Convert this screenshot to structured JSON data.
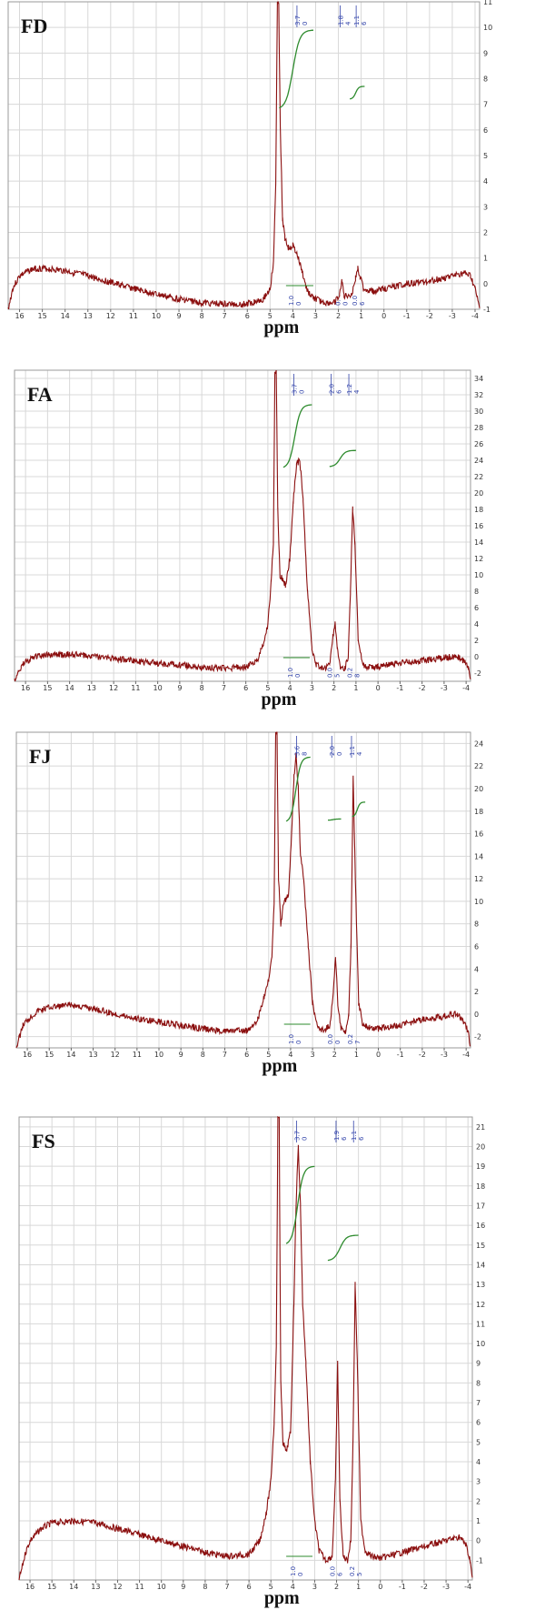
{
  "colors": {
    "spectrum": "#8b0f0f",
    "integral": "#2e8b2e",
    "peak_label": "#3344aa",
    "grid": "#d8d8d8"
  },
  "chart_data": [
    {
      "type": "line",
      "title": "FD",
      "xlabel": "ppm",
      "xlim": [
        16.5,
        -4.2
      ],
      "x_reversed": true,
      "ylim": [
        -1,
        11
      ],
      "x_ticks": [
        16,
        15,
        14,
        13,
        12,
        11,
        10,
        9,
        8,
        7,
        6,
        5,
        4,
        3,
        2,
        1,
        0,
        -1,
        -2,
        -3,
        -4
      ],
      "y_ticks": [
        -1,
        0,
        1,
        2,
        3,
        4,
        5,
        6,
        7,
        8,
        9,
        10,
        11
      ],
      "series": [
        {
          "x": [
            16.5,
            16.3,
            16,
            15.5,
            15,
            14,
            13,
            12,
            11,
            10,
            9,
            8,
            7,
            6,
            5.7,
            5.3,
            5.0,
            4.85,
            4.75,
            4.68,
            4.62,
            4.55,
            4.45,
            4.35,
            4.2,
            4.0,
            3.8,
            3.6,
            3.4,
            3.2,
            3.0,
            2.6,
            2.2,
            1.95,
            1.85,
            1.75,
            1.4,
            1.25,
            1.15,
            1.05,
            0.9,
            0.5,
            0,
            -1,
            -2,
            -3,
            -3.5,
            -3.8,
            -4,
            -4.2
          ],
          "y": [
            -1,
            -0.2,
            0.3,
            0.55,
            0.6,
            0.5,
            0.3,
            0.05,
            -0.2,
            -0.42,
            -0.6,
            -0.75,
            -0.8,
            -0.8,
            -0.7,
            -0.6,
            -0.2,
            0.8,
            4,
            11,
            11,
            6,
            2.5,
            1.8,
            1.4,
            1.5,
            1.1,
            0.5,
            -0.2,
            -0.5,
            -0.6,
            -0.75,
            -0.75,
            -0.5,
            0.2,
            -0.5,
            -0.4,
            0.2,
            0.6,
            0.3,
            -0.2,
            -0.3,
            -0.2,
            0,
            0.1,
            0.3,
            0.4,
            0.3,
            -0.2,
            -1
          ]
        }
      ],
      "peak_labels": [
        {
          "x": 3.7,
          "text": [
            "3.7",
            "0"
          ]
        },
        {
          "x": 1.8,
          "text": [
            "1.8",
            "4"
          ]
        },
        {
          "x": 1.1,
          "text": [
            "1.1",
            "6"
          ]
        }
      ],
      "integrals": [
        {
          "x0": 4.6,
          "x1": 3.1,
          "y0": 6.8,
          "y1": 9.9
        },
        {
          "x0": 1.5,
          "x1": 0.85,
          "y0": 7.2,
          "y1": 7.7
        }
      ],
      "integral_values": [
        {
          "x": 3.9,
          "text": [
            "1.0",
            "0"
          ]
        },
        {
          "x": 1.85,
          "text": [
            "0.",
            "0"
          ]
        },
        {
          "x": 1.1,
          "text": [
            "0.0",
            "6"
          ]
        }
      ]
    },
    {
      "type": "line",
      "title": "FA",
      "xlabel": "ppm",
      "xlim": [
        16.5,
        -4.2
      ],
      "x_reversed": true,
      "ylim": [
        -3,
        35
      ],
      "x_ticks": [
        16,
        15,
        14,
        13,
        12,
        11,
        10,
        9,
        8,
        7,
        6,
        5,
        4,
        3,
        2,
        1,
        0,
        -1,
        -2,
        -3,
        -4
      ],
      "y_ticks": [
        -2,
        0,
        2,
        4,
        6,
        8,
        10,
        12,
        14,
        16,
        18,
        20,
        22,
        24,
        26,
        28,
        30,
        32,
        34
      ],
      "series": [
        {
          "x": [
            16.5,
            16.2,
            16,
            15.5,
            15,
            14,
            13,
            12,
            11,
            10,
            9,
            8,
            7,
            6,
            5.5,
            5.2,
            5.0,
            4.85,
            4.75,
            4.68,
            4.62,
            4.55,
            4.45,
            4.2,
            4.0,
            3.85,
            3.7,
            3.55,
            3.4,
            3.2,
            3.0,
            2.8,
            2.5,
            2.2,
            2.05,
            1.95,
            1.85,
            1.7,
            1.5,
            1.35,
            1.25,
            1.15,
            1.05,
            0.9,
            0.7,
            0.4,
            0,
            -1,
            -2,
            -3,
            -3.6,
            -3.9,
            -4.1,
            -4.2
          ],
          "y": [
            -3,
            -1.2,
            -0.6,
            0,
            0.2,
            0.3,
            0.1,
            -0.2,
            -0.5,
            -0.8,
            -1,
            -1.3,
            -1.4,
            -1.2,
            -0.5,
            1.5,
            4,
            9,
            14,
            35,
            35,
            18,
            10,
            8.8,
            12,
            19,
            23.5,
            24,
            19,
            8,
            1,
            -1,
            -1.5,
            -1,
            2.5,
            4,
            1,
            -1.2,
            -1.4,
            0,
            8,
            18,
            14,
            2,
            -1,
            -1.3,
            -1.2,
            -0.8,
            -0.5,
            -0.1,
            0,
            -0.5,
            -1.5,
            -3
          ]
        }
      ],
      "peak_labels": [
        {
          "x": 3.7,
          "text": [
            "3.7",
            "0"
          ]
        },
        {
          "x": 2.0,
          "text": [
            "2.0",
            "6"
          ]
        },
        {
          "x": 1.2,
          "text": [
            "1.2",
            "4"
          ]
        }
      ],
      "integrals": [
        {
          "x0": 4.3,
          "x1": 3.0,
          "y0": 23,
          "y1": 30.8
        },
        {
          "x0": 2.2,
          "x1": 1.0,
          "y0": 23.2,
          "y1": 25.2
        }
      ],
      "integral_values": [
        {
          "x": 3.8,
          "text": [
            "1.0",
            "0"
          ]
        },
        {
          "x": 2.0,
          "text": [
            "0.0",
            "5"
          ]
        },
        {
          "x": 1.1,
          "text": [
            "0.2",
            "8"
          ]
        }
      ]
    },
    {
      "type": "line",
      "title": "FJ",
      "xlabel": "ppm",
      "xlim": [
        16.5,
        -4.2
      ],
      "x_reversed": true,
      "ylim": [
        -3,
        25
      ],
      "x_ticks": [
        16,
        15,
        14,
        13,
        12,
        11,
        10,
        9,
        8,
        7,
        6,
        5,
        4,
        3,
        2,
        1,
        0,
        -1,
        -2,
        -3,
        -4
      ],
      "y_ticks": [
        -2,
        0,
        2,
        4,
        6,
        8,
        10,
        12,
        14,
        16,
        18,
        20,
        22,
        24
      ],
      "series": [
        {
          "x": [
            16.5,
            16.2,
            16,
            15.5,
            15,
            14,
            13,
            12,
            11,
            10,
            9,
            8,
            7,
            6,
            5.5,
            5.2,
            5.0,
            4.85,
            4.75,
            4.68,
            4.62,
            4.55,
            4.45,
            4.3,
            4.1,
            3.95,
            3.85,
            3.75,
            3.65,
            3.55,
            3.4,
            3.2,
            3.0,
            2.8,
            2.5,
            2.2,
            2.05,
            1.95,
            1.85,
            1.7,
            1.5,
            1.35,
            1.25,
            1.15,
            1.05,
            0.9,
            0.7,
            0.4,
            0,
            -1,
            -2,
            -3,
            -3.6,
            -3.9,
            -4.1,
            -4.2
          ],
          "y": [
            -3,
            -1,
            -0.5,
            0.3,
            0.6,
            0.8,
            0.5,
            0,
            -0.4,
            -0.7,
            -1,
            -1.3,
            -1.5,
            -1.5,
            -0.5,
            1.5,
            3,
            5,
            10,
            25,
            25,
            12,
            8,
            10,
            10.5,
            16,
            21,
            23,
            20,
            14,
            12,
            6,
            1,
            -1,
            -1.5,
            -1,
            2,
            5,
            1,
            -1.4,
            -1.5,
            0,
            6,
            21,
            12,
            1,
            -1,
            -1.2,
            -1.3,
            -1,
            -0.5,
            -0.2,
            0,
            -0.6,
            -1.6,
            -3
          ]
        }
      ],
      "peak_labels": [
        {
          "x": 3.6,
          "text": [
            "3.6",
            "8"
          ]
        },
        {
          "x": 2.0,
          "text": [
            "2.0",
            "0"
          ]
        },
        {
          "x": 1.1,
          "text": [
            "1.1",
            "4"
          ]
        }
      ],
      "integrals": [
        {
          "x0": 4.2,
          "x1": 3.1,
          "y0": 17,
          "y1": 22.8
        },
        {
          "x0": 2.3,
          "x1": 1.7,
          "y0": 17.2,
          "y1": 17.3
        },
        {
          "x0": 1.2,
          "x1": 0.6,
          "y0": 17.5,
          "y1": 18.8
        }
      ],
      "integral_values": [
        {
          "x": 3.8,
          "text": [
            "1.0",
            "0"
          ]
        },
        {
          "x": 2.0,
          "text": [
            "0.0",
            "0"
          ]
        },
        {
          "x": 1.1,
          "text": [
            "0.2",
            "7"
          ]
        }
      ]
    },
    {
      "type": "line",
      "title": "FS",
      "xlabel": "ppm",
      "xlim": [
        16.5,
        -4.2
      ],
      "x_reversed": true,
      "ylim": [
        -2,
        21.5
      ],
      "x_ticks": [
        16,
        15,
        14,
        13,
        12,
        11,
        10,
        9,
        8,
        7,
        6,
        5,
        4,
        3,
        2,
        1,
        0,
        -1,
        -2,
        -3,
        -4
      ],
      "y_ticks": [
        -1,
        0,
        1,
        2,
        3,
        4,
        5,
        6,
        7,
        8,
        9,
        10,
        11,
        12,
        13,
        14,
        15,
        16,
        17,
        18,
        19,
        20,
        21
      ],
      "series": [
        {
          "x": [
            16.5,
            16.2,
            16,
            15.5,
            15,
            14,
            13,
            12,
            11,
            10,
            9,
            8,
            7,
            6,
            5.5,
            5.2,
            5.0,
            4.85,
            4.75,
            4.68,
            4.62,
            4.55,
            4.45,
            4.3,
            4.1,
            3.95,
            3.85,
            3.75,
            3.65,
            3.55,
            3.4,
            3.2,
            3.0,
            2.8,
            2.5,
            2.2,
            2.05,
            1.95,
            1.85,
            1.7,
            1.5,
            1.35,
            1.25,
            1.15,
            1.05,
            0.9,
            0.7,
            0.4,
            0,
            -1,
            -2,
            -3,
            -3.6,
            -3.9,
            -4.1,
            -4.2
          ],
          "y": [
            -2,
            -0.6,
            0,
            0.6,
            0.9,
            1.0,
            0.9,
            0.6,
            0.3,
            0,
            -0.3,
            -0.6,
            -0.8,
            -0.7,
            0,
            1.5,
            3,
            6,
            10,
            21.5,
            21.5,
            8,
            5,
            4.5,
            5.5,
            12,
            17,
            20,
            17,
            12,
            9,
            4,
            1,
            -0.5,
            -1,
            -0.8,
            3,
            9,
            2,
            -0.8,
            -1,
            0,
            5,
            13,
            9,
            1,
            -0.5,
            -0.8,
            -0.9,
            -0.6,
            -0.3,
            0,
            0.2,
            -0.2,
            -1,
            -2
          ]
        }
      ],
      "peak_labels": [
        {
          "x": 3.7,
          "text": [
            "3.7",
            "0"
          ]
        },
        {
          "x": 1.9,
          "text": [
            "1.9",
            "6"
          ]
        },
        {
          "x": 1.1,
          "text": [
            "1.1",
            "6"
          ]
        }
      ],
      "integrals": [
        {
          "x0": 4.3,
          "x1": 3.0,
          "y0": 15,
          "y1": 19
        },
        {
          "x0": 2.4,
          "x1": 1.0,
          "y0": 14.2,
          "y1": 15.5
        }
      ],
      "integral_values": [
        {
          "x": 3.8,
          "text": [
            "1.0",
            "0"
          ]
        },
        {
          "x": 2.0,
          "text": [
            "0.0",
            "6"
          ]
        },
        {
          "x": 1.1,
          "text": [
            "0.2",
            "5"
          ]
        }
      ]
    }
  ]
}
